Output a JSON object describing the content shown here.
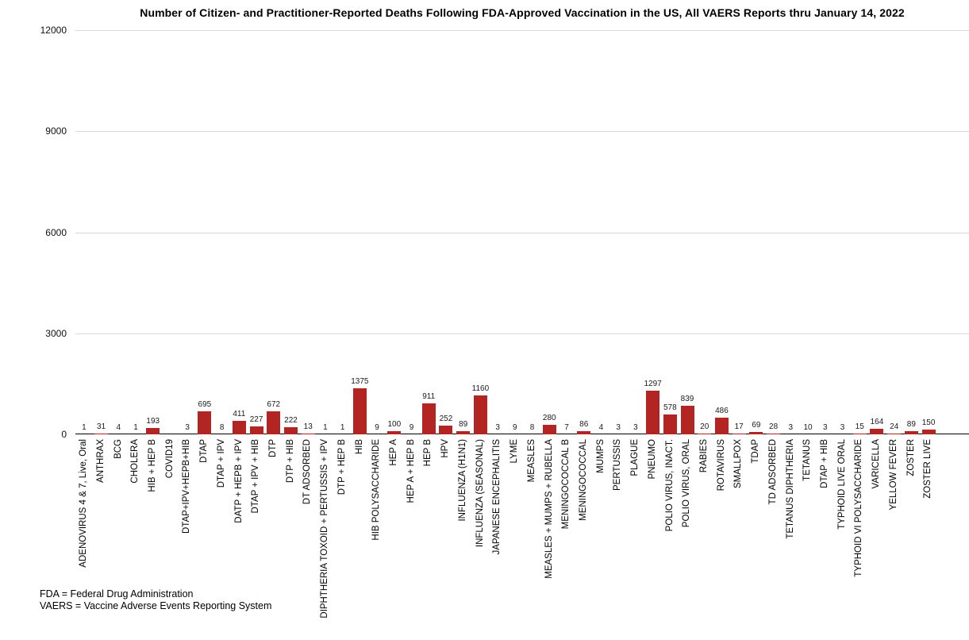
{
  "chart_data": {
    "type": "bar",
    "title": "Number of Citizen- and Practitioner-Reported Deaths Following FDA-Approved Vaccination in the US, All VAERS Reports thru January 14, 2022",
    "categories": [
      "ADENOVIRUS 4 & 7, Live, Oral",
      "ANTHRAX",
      "BCG",
      "CHOLERA",
      "HIB + HEP B",
      "COVID19",
      "DTAP+IPV+HEPB+HIB",
      "DTAP",
      "DTAP + IPV",
      "DATP + HEPB + IPV",
      "DTAP + IPV + HIB",
      "DTP",
      "DTP + HIB",
      "DT ADSORBED",
      "DIPHTHERIA TOXOID + PERTUSSIS + IPV",
      "DTP + HEP B",
      "HIB",
      "HIB POLYSACCHARIDE",
      "HEP A",
      "HEP A + HEP B",
      "HEP B",
      "HPV",
      "INFLUENZA (H1N1)",
      "INFLUENZA (SEASONAL)",
      "JAPANESE ENCEPHALITIS",
      "LYME",
      "MEASLES",
      "MEASLES + MUMPS + RUBELLA",
      "MENINGOCOCCAL B",
      "MENINGOCOCCAL",
      "MUMPS",
      "PERTUSSIS",
      "PLAGUE",
      "PNEUMO",
      "POLIO VIRUS, INACT.",
      "POLIO VIRUS, ORAL",
      "RABIES",
      "ROTAVIRUS",
      "SMALLPOX",
      "TDAP",
      "TD ADSORBED",
      "TETANUS DIPHTHERIA",
      "TETANUS",
      "DTAP + HIB",
      "TYPHOID LIVE ORAL",
      "TYPHOID VI POLYSACCHARIDE",
      "VARICELLA",
      "YELLOW FEVER",
      "ZOSTER",
      "ZOSTER LIVE"
    ],
    "values": [
      1,
      31,
      4,
      1,
      193,
      null,
      3,
      695,
      8,
      411,
      227,
      672,
      222,
      13,
      1,
      1,
      1375,
      9,
      100,
      9,
      911,
      252,
      89,
      1160,
      3,
      9,
      8,
      280,
      7,
      86,
      4,
      3,
      3,
      1297,
      578,
      839,
      20,
      486,
      17,
      69,
      28,
      3,
      10,
      3,
      3,
      15,
      164,
      24,
      89,
      150
    ],
    "xlabel": "",
    "ylabel": "",
    "ylim": [
      0,
      12000
    ],
    "yticks": [
      0,
      3000,
      6000,
      9000,
      12000
    ],
    "grid": "horizontal",
    "legend": "none",
    "value_labels": true,
    "bar_color": "#b22523",
    "gridline_color": "#d9d9d9",
    "footnotes": [
      "FDA = Federal Drug Administration",
      "VAERS = Vaccine Adverse Events Reporting System"
    ]
  }
}
